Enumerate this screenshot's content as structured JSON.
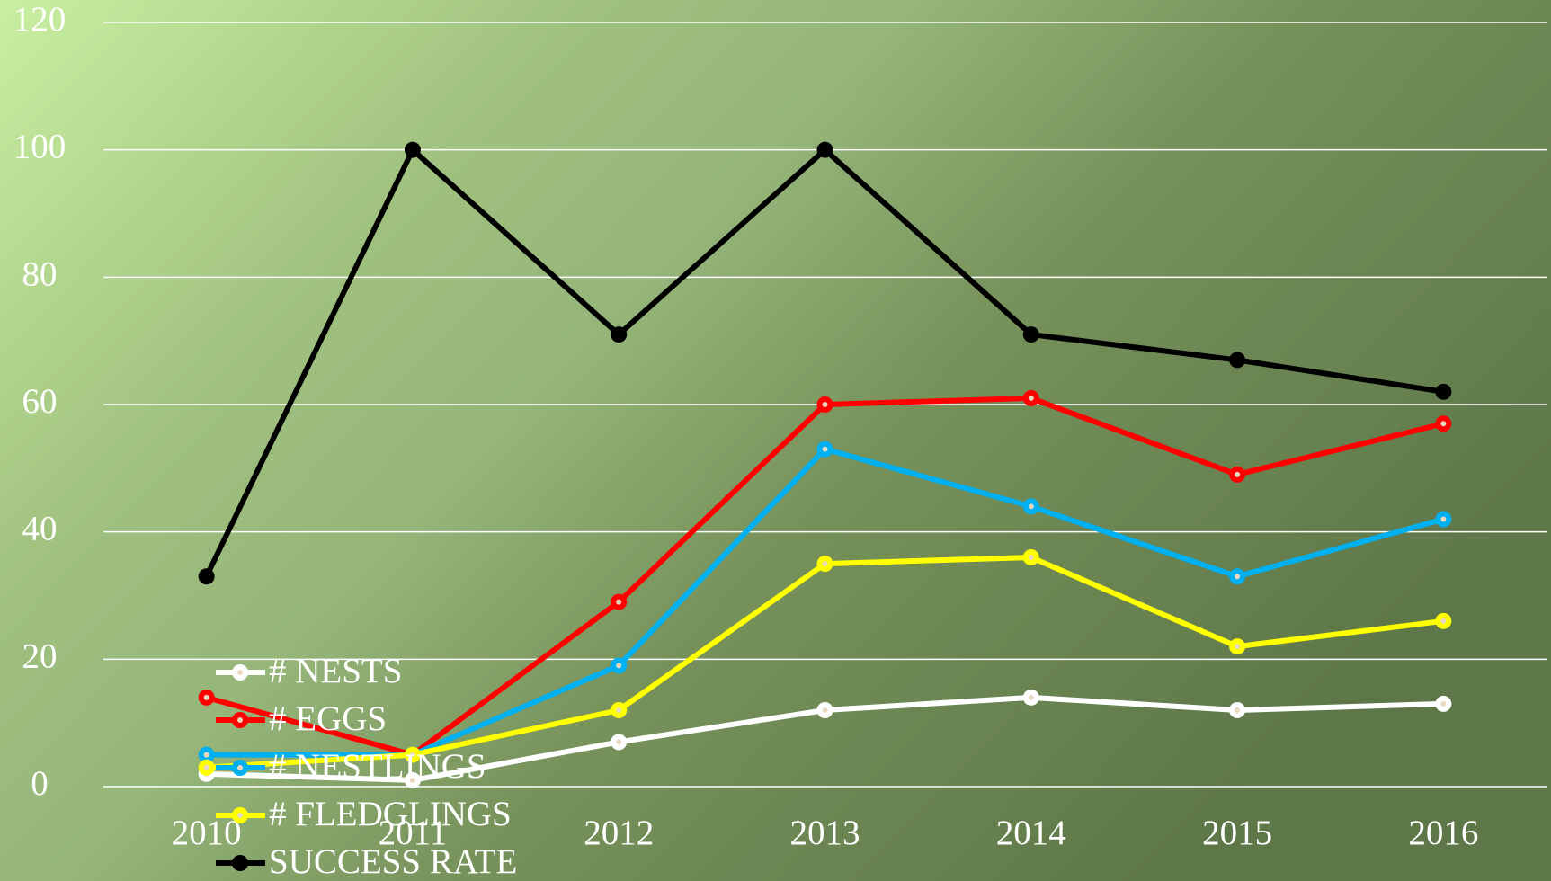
{
  "chart_data": {
    "type": "line",
    "categories": [
      "2010",
      "2011",
      "2012",
      "2013",
      "2014",
      "2015",
      "2016"
    ],
    "series": [
      {
        "name": "# NESTS",
        "color": "#ffffff",
        "values": [
          2,
          1,
          7,
          12,
          14,
          12,
          13
        ]
      },
      {
        "name": "# EGGS",
        "color": "#ff0000",
        "values": [
          14,
          5,
          29,
          60,
          61,
          49,
          57
        ]
      },
      {
        "name": "# NESTLINGS",
        "color": "#00b0f0",
        "values": [
          5,
          5,
          19,
          53,
          44,
          33,
          42
        ]
      },
      {
        "name": "# FLEDGLINGS",
        "color": "#ffff00",
        "values": [
          3,
          5,
          12,
          35,
          36,
          22,
          26
        ]
      },
      {
        "name": "SUCCESS RATE",
        "color": "#000000",
        "values": [
          33,
          100,
          71,
          100,
          71,
          67,
          62
        ]
      }
    ],
    "ylim": [
      0,
      120
    ],
    "yticks": [
      0,
      20,
      40,
      60,
      80,
      100,
      120
    ],
    "grid": true,
    "legend": "bottom-left"
  }
}
